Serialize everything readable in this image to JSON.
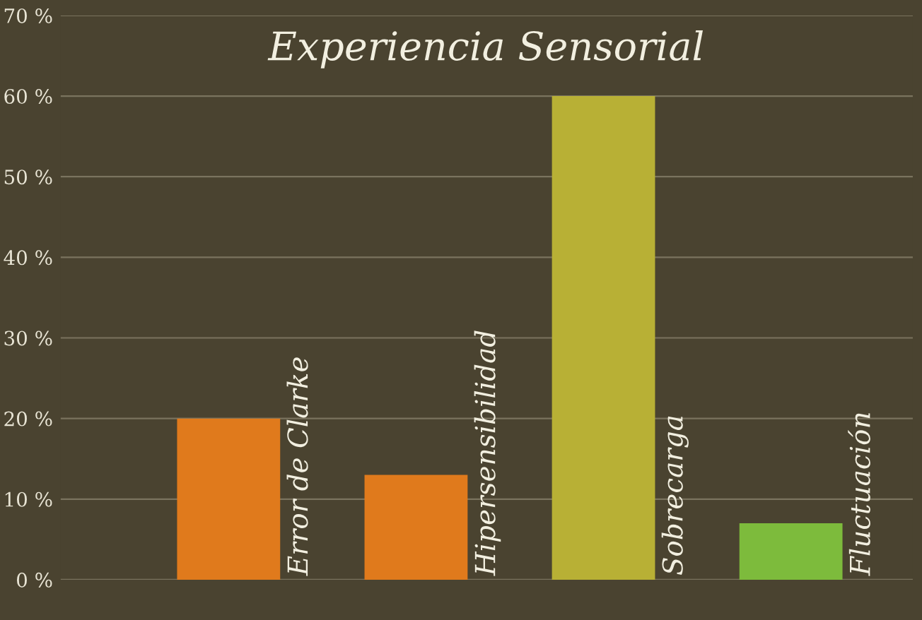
{
  "chart_data": {
    "type": "bar",
    "title": "Experiencia Sensorial",
    "categories": [
      "Error de Clarke",
      "Hipersensibilidad",
      "Sobrecarga",
      "Fluctuación"
    ],
    "values": [
      20,
      13,
      60,
      7
    ],
    "colors": [
      "#e07a1c",
      "#e07a1c",
      "#b8b035",
      "#7dbb3c"
    ],
    "ylim": [
      0,
      70
    ],
    "yticks": [
      {
        "value": 0,
        "label": "0 %"
      },
      {
        "value": 10,
        "label": "10 %"
      },
      {
        "value": 20,
        "label": "20 %"
      },
      {
        "value": 30,
        "label": "30 %"
      },
      {
        "value": 40,
        "label": "40 %"
      },
      {
        "value": 50,
        "label": "50 %"
      },
      {
        "value": 60,
        "label": "60 %"
      },
      {
        "value": 70,
        "label": "70 %"
      }
    ],
    "grid": "y",
    "legend": false
  }
}
